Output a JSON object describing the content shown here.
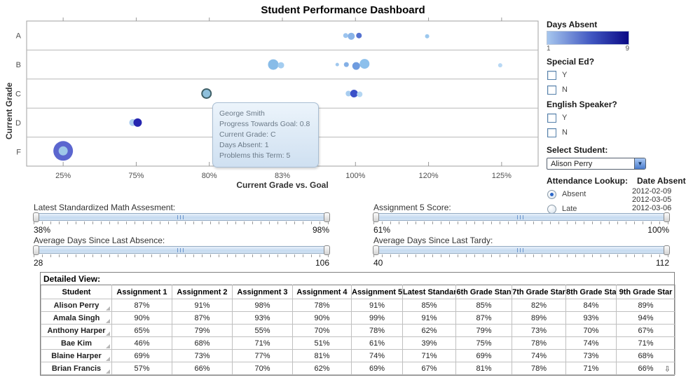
{
  "title": "Student Performance Dashboard",
  "scatter": {
    "ylabel": "Current Grade",
    "xlabel": "Current Grade vs. Goal",
    "y_categories": [
      "A",
      "B",
      "C",
      "D",
      "F"
    ],
    "x_ticks": [
      "25%",
      "75%",
      "80%",
      "83%",
      "100%",
      "120%",
      "125%"
    ],
    "points": [
      {
        "grade": "A",
        "x": "100%",
        "dx": -14,
        "dy": 0,
        "r": 3.5,
        "color": "#9cc4ee"
      },
      {
        "grade": "A",
        "x": "100%",
        "dx": -6,
        "dy": 1,
        "r": 5,
        "color": "#8ab4e8"
      },
      {
        "grade": "A",
        "x": "100%",
        "dx": 5,
        "dy": 0,
        "r": 4,
        "color": "#5572d0"
      },
      {
        "grade": "A",
        "x": "120%",
        "dx": -2,
        "dy": 1,
        "r": 3,
        "color": "#9cc8ee"
      },
      {
        "grade": "B",
        "x": "83%",
        "dx": -13,
        "dy": 0,
        "r": 7.5,
        "color": "#88bce8"
      },
      {
        "grade": "B",
        "x": "83%",
        "dx": -2,
        "dy": 1,
        "r": 4.5,
        "color": "#a4cdf0"
      },
      {
        "grade": "B",
        "x": "100%",
        "dx": -26,
        "dy": 0,
        "r": 2.5,
        "color": "#a0c8ee"
      },
      {
        "grade": "B",
        "x": "100%",
        "dx": -13,
        "dy": 0,
        "r": 3.5,
        "color": "#84b0e6"
      },
      {
        "grade": "B",
        "x": "100%",
        "dx": 1,
        "dy": 2,
        "r": 5.5,
        "color": "#6f9cdf"
      },
      {
        "grade": "B",
        "x": "100%",
        "dx": 13,
        "dy": -1,
        "r": 7,
        "color": "#8cc0ec"
      },
      {
        "grade": "B",
        "x": "125%",
        "dx": -2,
        "dy": 1,
        "r": 3,
        "color": "#b8d8f4"
      },
      {
        "grade": "C",
        "x": "80%",
        "dx": -4,
        "dy": 0,
        "r": 6.5,
        "color": "#8fc0dc",
        "ring": "#3f5f66",
        "selected": true
      },
      {
        "grade": "C",
        "x": "100%",
        "dx": -10,
        "dy": 0,
        "r": 4,
        "color": "#a8cdf0"
      },
      {
        "grade": "C",
        "x": "100%",
        "dx": -2,
        "dy": 0,
        "r": 5.5,
        "color": "#3a50c8"
      },
      {
        "grade": "C",
        "x": "100%",
        "dx": 6,
        "dy": 1,
        "r": 4,
        "color": "#b4d6f2"
      },
      {
        "grade": "D",
        "x": "75%",
        "dx": -5,
        "dy": 0,
        "r": 5,
        "color": "#aacdf0"
      },
      {
        "grade": "D",
        "x": "75%",
        "dx": 2,
        "dy": 0,
        "r": 6,
        "color": "#2626b0"
      },
      {
        "grade": "F",
        "x": "25%",
        "dx": 0,
        "dy": -1,
        "r": 14,
        "color": "#5b66cf",
        "core": "#9ec7e8",
        "core_r": 6.5
      }
    ]
  },
  "tooltip": {
    "lines": [
      "George Smith",
      "Progress Towards Goal: 0.8",
      "Current Grade: C",
      "Days Absent: 1",
      "Problems this Term: 5"
    ]
  },
  "legend": {
    "title": "Days Absent",
    "min": "1",
    "max": "9",
    "color_start": "#a6c6ee",
    "color_end": "#0a0a85"
  },
  "filters": {
    "special_ed": {
      "label": "Special Ed?",
      "options": [
        "Y",
        "N"
      ]
    },
    "english_speaker": {
      "label": "English Speaker?",
      "options": [
        "Y",
        "N"
      ]
    },
    "select_student": {
      "label": "Select Student:",
      "value": "Alison Perry"
    },
    "attendance": {
      "label": "Attendance Lookup:",
      "options": [
        "Absent",
        "Late"
      ],
      "selected": "Absent"
    },
    "date_absent": {
      "label": "Date Absent",
      "dates": [
        "2012-02-09",
        "2012-03-05",
        "2012-03-06"
      ]
    }
  },
  "sliders": [
    {
      "label": "Latest Standardized Math Assesment:",
      "min": "38%",
      "max": "98%"
    },
    {
      "label": "Assignment 5 Score:",
      "min": "61%",
      "max": "100%"
    },
    {
      "label": "Average Days Since Last Absence:",
      "min": "28",
      "max": "106"
    },
    {
      "label": "Average Days Since Last Tardy:",
      "min": "40",
      "max": "112"
    }
  ],
  "table": {
    "title": "Detailed View:",
    "columns": [
      "Student",
      "Assignment 1",
      "Assignment 2",
      "Assignment 3",
      "Assignment 4",
      "Assignment 5",
      "Latest Standar",
      "6th Grade Stan",
      "7th Grade Star",
      "8th Grade Sta",
      "9th Grade Star"
    ],
    "rows": [
      {
        "name": "Alison Perry",
        "values": [
          "87%",
          "91%",
          "98%",
          "78%",
          "91%",
          "85%",
          "85%",
          "82%",
          "84%",
          "89%"
        ]
      },
      {
        "name": "Amala Singh",
        "values": [
          "90%",
          "87%",
          "93%",
          "90%",
          "99%",
          "91%",
          "87%",
          "89%",
          "93%",
          "94%"
        ]
      },
      {
        "name": "Anthony Harper",
        "values": [
          "65%",
          "79%",
          "55%",
          "70%",
          "78%",
          "62%",
          "79%",
          "73%",
          "70%",
          "67%"
        ]
      },
      {
        "name": "Bae Kim",
        "values": [
          "46%",
          "68%",
          "71%",
          "51%",
          "61%",
          "39%",
          "75%",
          "78%",
          "74%",
          "71%"
        ]
      },
      {
        "name": "Blaine Harper",
        "values": [
          "69%",
          "73%",
          "77%",
          "81%",
          "74%",
          "71%",
          "69%",
          "74%",
          "73%",
          "68%"
        ]
      },
      {
        "name": "Brian Francis",
        "values": [
          "57%",
          "66%",
          "70%",
          "62%",
          "69%",
          "67%",
          "81%",
          "78%",
          "71%",
          "66%"
        ]
      }
    ],
    "scroll_arrow": "⇩"
  }
}
